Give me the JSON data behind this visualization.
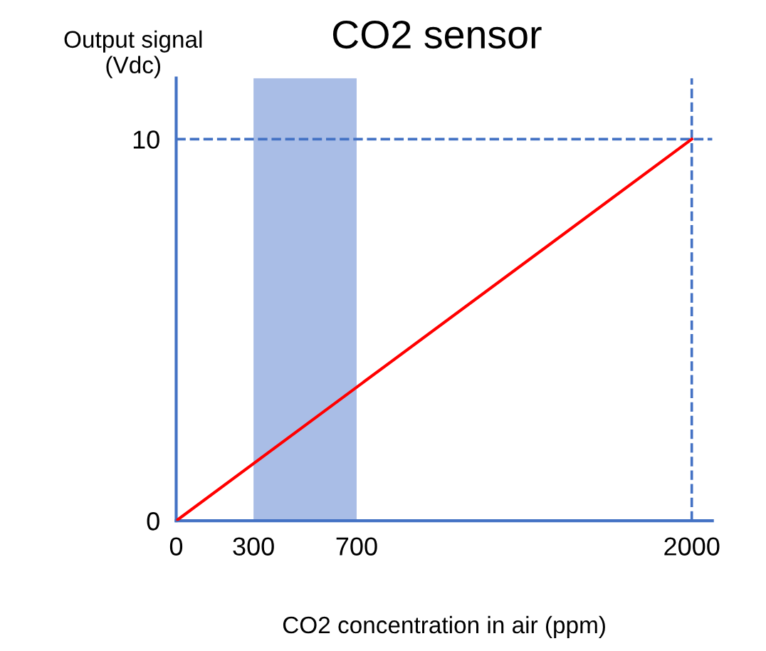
{
  "chart_data": {
    "type": "line",
    "title": "CO2 sensor",
    "xlabel": "CO2 concentration in air (ppm)",
    "ylabel": "Output signal\n(Vdc)",
    "x": [
      0,
      2000
    ],
    "series": [
      {
        "color": "#ff0000",
        "values": [
          0,
          10
        ]
      }
    ],
    "xlim": [
      0,
      2080
    ],
    "ylim": [
      0,
      11.6
    ],
    "xticks": [
      0,
      300,
      700,
      2000
    ],
    "yticks": [
      0,
      10
    ],
    "ref_lines": [
      {
        "axis": "y",
        "value": 10,
        "color": "#4472c4",
        "line_style": "dashed"
      },
      {
        "axis": "x",
        "value": 2000,
        "color": "#4472c4",
        "line_style": "dashed"
      }
    ],
    "bands": [
      {
        "axis": "x",
        "from": 300,
        "to": 700,
        "color": "#a9bde6"
      }
    ],
    "grid": false,
    "legend": false,
    "marker": "none",
    "line_style": "solid"
  }
}
